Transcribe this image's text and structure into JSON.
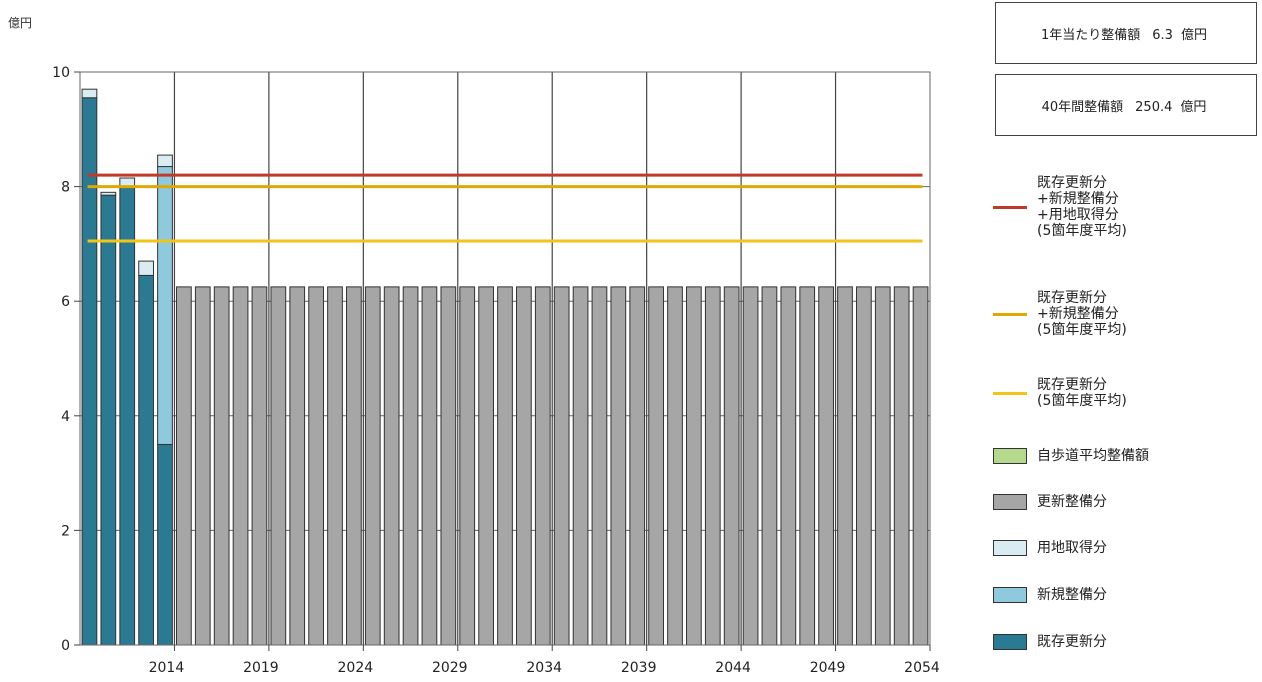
{
  "chart_data": {
    "type": "bar",
    "stacked": true,
    "unit_label": "億円",
    "ylim": [
      0,
      10
    ],
    "y_ticks": [
      "0",
      "2",
      "4",
      "6",
      "8",
      "10"
    ],
    "x_tick_labels": [
      "2014",
      "2019",
      "2024",
      "2029",
      "2034",
      "2039",
      "2044",
      "2049",
      "2054"
    ],
    "x_years_start": 2010,
    "x_years_end": 2054,
    "grid": true,
    "series": [
      {
        "name": "既存更新分",
        "color": "#2b7a94",
        "values": [
          9.55,
          7.85,
          8.0,
          6.45,
          3.5,
          0,
          0,
          0,
          0,
          0,
          0,
          0,
          0,
          0,
          0,
          0,
          0,
          0,
          0,
          0,
          0,
          0,
          0,
          0,
          0,
          0,
          0,
          0,
          0,
          0,
          0,
          0,
          0,
          0,
          0,
          0,
          0,
          0,
          0,
          0,
          0,
          0,
          0,
          0,
          0
        ]
      },
      {
        "name": "新規整備分",
        "color": "#8fc9de",
        "values": [
          0,
          0,
          0,
          0,
          4.85,
          0,
          0,
          0,
          0,
          0,
          0,
          0,
          0,
          0,
          0,
          0,
          0,
          0,
          0,
          0,
          0,
          0,
          0,
          0,
          0,
          0,
          0,
          0,
          0,
          0,
          0,
          0,
          0,
          0,
          0,
          0,
          0,
          0,
          0,
          0,
          0,
          0,
          0,
          0,
          0
        ]
      },
      {
        "name": "用地取得分",
        "color": "#d9ecf2",
        "values": [
          0.15,
          0.05,
          0.15,
          0.25,
          0.2,
          0,
          0,
          0,
          0,
          0,
          0,
          0,
          0,
          0,
          0,
          0,
          0,
          0,
          0,
          0,
          0,
          0,
          0,
          0,
          0,
          0,
          0,
          0,
          0,
          0,
          0,
          0,
          0,
          0,
          0,
          0,
          0,
          0,
          0,
          0,
          0,
          0,
          0,
          0,
          0
        ]
      },
      {
        "name": "更新整備分",
        "color": "#a6a6a6",
        "values": [
          0,
          0,
          0,
          0,
          0,
          6.25,
          6.25,
          6.25,
          6.25,
          6.25,
          6.25,
          6.25,
          6.25,
          6.25,
          6.25,
          6.25,
          6.25,
          6.25,
          6.25,
          6.25,
          6.25,
          6.25,
          6.25,
          6.25,
          6.25,
          6.25,
          6.25,
          6.25,
          6.25,
          6.25,
          6.25,
          6.25,
          6.25,
          6.25,
          6.25,
          6.25,
          6.25,
          6.25,
          6.25,
          6.25,
          6.25,
          6.25,
          6.25,
          6.25,
          6.25
        ]
      },
      {
        "name": "自歩道平均整備額",
        "color": "#b5d98c",
        "values": [
          0,
          0,
          0,
          0,
          0,
          0,
          0,
          0,
          0,
          0,
          0,
          0,
          0,
          0,
          0,
          0,
          0,
          0,
          0,
          0,
          0,
          0,
          0,
          0,
          0,
          0,
          0,
          0,
          0,
          0,
          0,
          0,
          0,
          0,
          0,
          0,
          0,
          0,
          0,
          0,
          0,
          0,
          0,
          0,
          0
        ]
      }
    ],
    "reference_lines": [
      {
        "value": 8.2,
        "color": "#c0392b"
      },
      {
        "value": 8.0,
        "color": "#e0a800"
      },
      {
        "value": 7.05,
        "color": "#f0c419"
      }
    ]
  },
  "summary": {
    "annual": {
      "label": "1年当たり整備額",
      "value": "6.3",
      "unit": "億円"
    },
    "total": {
      "label": "40年間整備額",
      "value": "250.4",
      "unit": "億円"
    }
  },
  "legend": [
    {
      "kind": "line",
      "color": "#c0392b",
      "text": "既存更新分\n+新規整備分\n+用地取得分\n(5箇年度平均)"
    },
    {
      "kind": "line",
      "color": "#e0a800",
      "text": "既存更新分\n+新規整備分\n(5箇年度平均)"
    },
    {
      "kind": "line",
      "color": "#f0c419",
      "text": "既存更新分\n(5箇年度平均)"
    },
    {
      "kind": "swatch",
      "color": "#b5d98c",
      "text": "自歩道平均整備額"
    },
    {
      "kind": "swatch",
      "color": "#a6a6a6",
      "text": "更新整備分"
    },
    {
      "kind": "swatch",
      "color": "#d9ecf2",
      "text": "用地取得分"
    },
    {
      "kind": "swatch",
      "color": "#8fc9de",
      "text": "新規整備分"
    },
    {
      "kind": "swatch",
      "color": "#2b7a94",
      "text": "既存更新分"
    }
  ]
}
